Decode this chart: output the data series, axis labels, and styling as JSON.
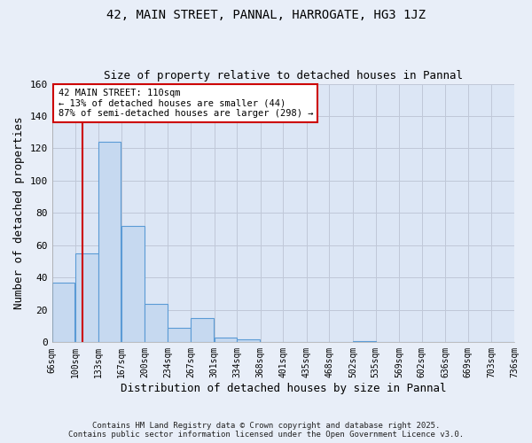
{
  "title1": "42, MAIN STREET, PANNAL, HARROGATE, HG3 1JZ",
  "title2": "Size of property relative to detached houses in Pannal",
  "xlabel": "Distribution of detached houses by size in Pannal",
  "ylabel": "Number of detached properties",
  "bar_left_edges": [
    66,
    100,
    133,
    167,
    200,
    234,
    267,
    301,
    334,
    368,
    401,
    435,
    468,
    502,
    535,
    569,
    602,
    636,
    669,
    703
  ],
  "bar_heights": [
    37,
    55,
    124,
    72,
    24,
    9,
    15,
    3,
    2,
    0,
    0,
    0,
    0,
    1,
    0,
    0,
    0,
    0,
    0,
    0
  ],
  "bin_width": 33,
  "bar_color": "#c6d9f0",
  "bar_edge_color": "#5b9bd5",
  "grid_color": "#c0c8d8",
  "background_color": "#dce6f5",
  "fig_background_color": "#e8eef8",
  "vline_x": 110,
  "vline_color": "#cc0000",
  "annotation_text": "42 MAIN STREET: 110sqm\n← 13% of detached houses are smaller (44)\n87% of semi-detached houses are larger (298) →",
  "annotation_box_color": "#ffffff",
  "annotation_box_edge": "#cc0000",
  "ylim": [
    0,
    160
  ],
  "yticks": [
    0,
    20,
    40,
    60,
    80,
    100,
    120,
    140,
    160
  ],
  "tick_labels": [
    "66sqm",
    "100sqm",
    "133sqm",
    "167sqm",
    "200sqm",
    "234sqm",
    "267sqm",
    "301sqm",
    "334sqm",
    "368sqm",
    "401sqm",
    "435sqm",
    "468sqm",
    "502sqm",
    "535sqm",
    "569sqm",
    "602sqm",
    "636sqm",
    "669sqm",
    "703sqm",
    "736sqm"
  ],
  "footer1": "Contains HM Land Registry data © Crown copyright and database right 2025.",
  "footer2": "Contains public sector information licensed under the Open Government Licence v3.0."
}
